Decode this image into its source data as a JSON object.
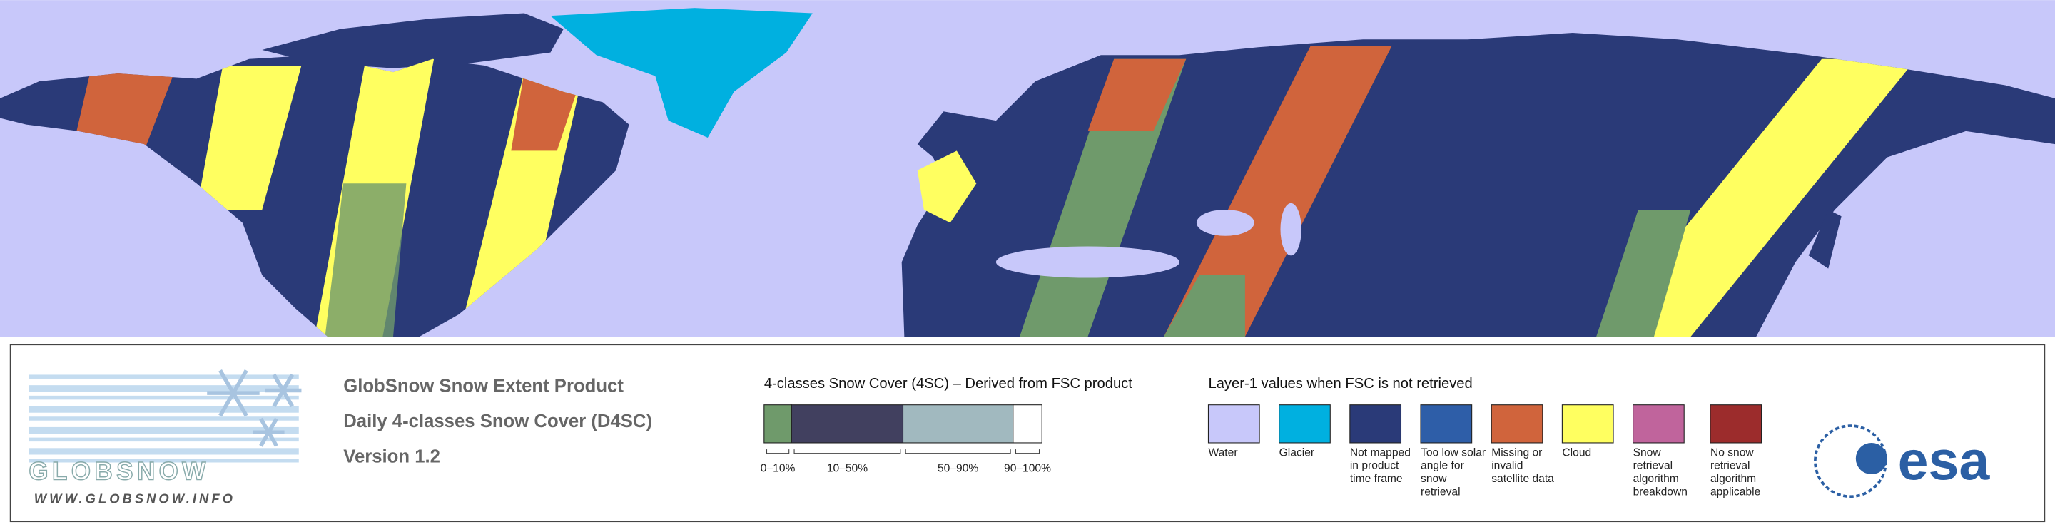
{
  "logo": {
    "name": "GLOBSNOW",
    "url": "WWW.GLOBSNOW.INFO"
  },
  "product": {
    "lines": [
      "GlobSnow Snow Extent Product",
      "Daily 4-classes Snow Cover (D4SC)",
      "Version 1.2"
    ]
  },
  "scale": {
    "title": "4-classes Snow Cover (4SC) – Derived from FSC product",
    "classes": [
      {
        "label": "0–10%",
        "color": "#6f9a6b"
      },
      {
        "label": "10–50%",
        "color": "#41405f"
      },
      {
        "label": "50–90%",
        "color": "#a1b9bf"
      },
      {
        "label": "90–100%",
        "color": "#ffffff"
      }
    ]
  },
  "layer1": {
    "title": "Layer-1 values when FSC is not retrieved",
    "items": [
      {
        "label": "Water",
        "color": "#c8c8fa"
      },
      {
        "label": "Glacier",
        "color": "#00b0e0"
      },
      {
        "label": "Not mapped in product time frame",
        "color": "#2a3a78"
      },
      {
        "label": "Too low solar angle for snow retrieval",
        "color": "#2e5ea8"
      },
      {
        "label": "Missing or invalid satellite data",
        "color": "#d0643c"
      },
      {
        "label": "Cloud",
        "color": "#ffff60"
      },
      {
        "label": "Snow retrieval algorithm breakdown",
        "color": "#c0649c"
      },
      {
        "label": "No snow retrieval algorithm applicable",
        "color": "#9c2c2c"
      }
    ]
  },
  "esa": {
    "name": "esa"
  }
}
